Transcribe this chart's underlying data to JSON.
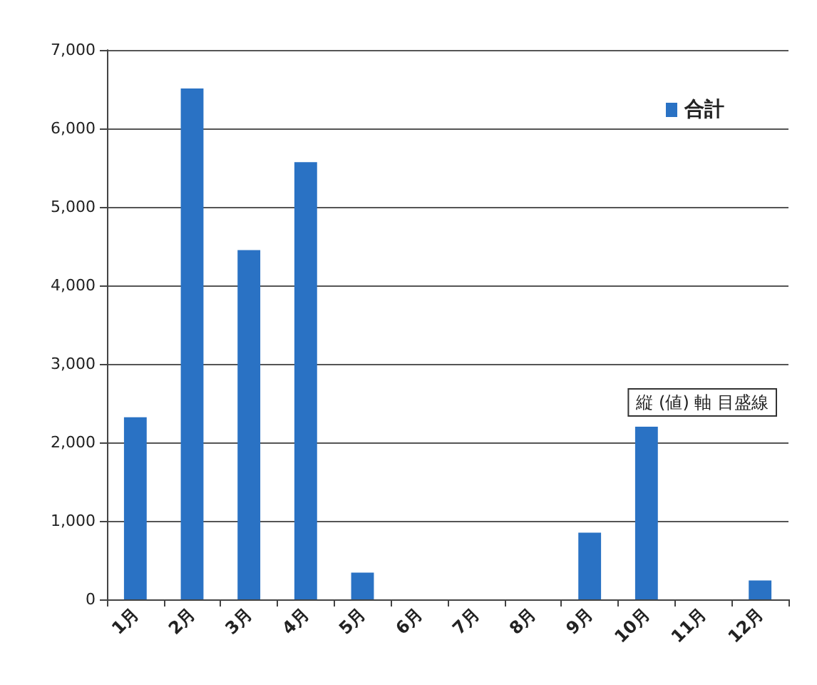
{
  "chart_data": {
    "type": "bar",
    "categories": [
      "1月",
      "2月",
      "3月",
      "4月",
      "5月",
      "6月",
      "7月",
      "8月",
      "9月",
      "10月",
      "11月",
      "12月"
    ],
    "series": [
      {
        "name": "合計",
        "color": "#2a72c4",
        "values": [
          2320,
          6510,
          4450,
          5570,
          340,
          0,
          0,
          0,
          850,
          2200,
          0,
          240
        ]
      }
    ],
    "ylim": [
      0,
      7000
    ],
    "yticks": [
      {
        "value": 0,
        "label": "0"
      },
      {
        "value": 1000,
        "label": "1,000"
      },
      {
        "value": 2000,
        "label": "2,000"
      },
      {
        "value": 3000,
        "label": "3,000"
      },
      {
        "value": 4000,
        "label": "4,000"
      },
      {
        "value": 5000,
        "label": "5,000"
      },
      {
        "value": 6000,
        "label": "6,000"
      },
      {
        "value": 7000,
        "label": "7,000"
      }
    ],
    "grid": "y",
    "legend": "top right",
    "annotations": [
      "縦 (値) 軸 目盛線"
    ]
  }
}
